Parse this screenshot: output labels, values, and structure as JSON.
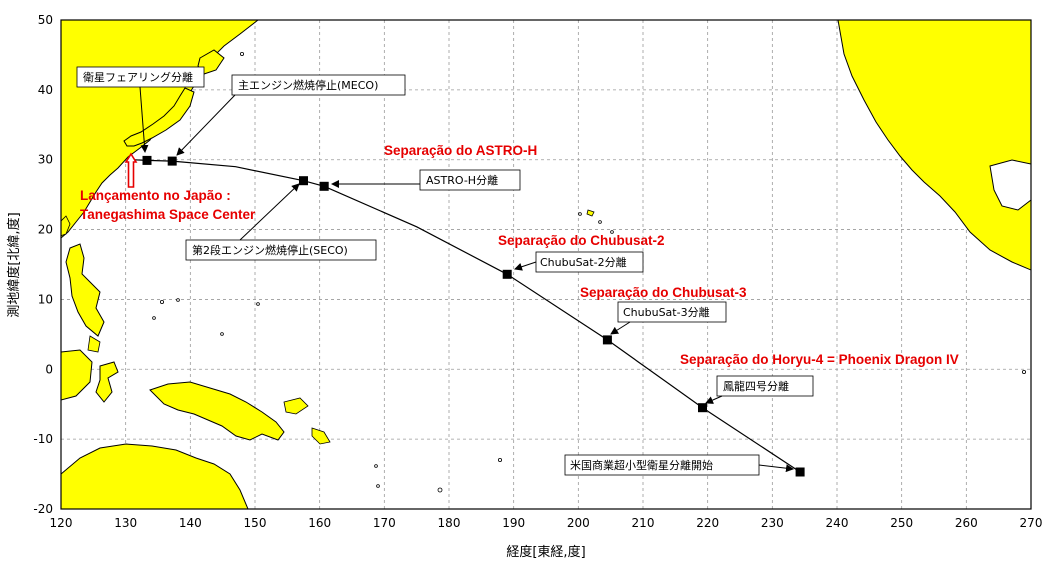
{
  "chart_data": {
    "type": "map",
    "xlabel": "経度[東経,度]",
    "ylabel": "測地緯度[北緯,度]",
    "xlim": [
      120,
      270
    ],
    "ylim": [
      -20,
      50
    ],
    "x_ticks": [
      120,
      130,
      140,
      150,
      160,
      170,
      180,
      190,
      200,
      210,
      220,
      230,
      240,
      250,
      260,
      270
    ],
    "y_ticks": [
      -20,
      -10,
      0,
      10,
      20,
      30,
      40,
      50
    ],
    "grid": true,
    "land_color": "#ffff00",
    "trajectory": [
      [
        130.9,
        30.0
      ],
      [
        133.3,
        29.9
      ],
      [
        137.2,
        29.8
      ],
      [
        147.0,
        29.0
      ],
      [
        157.5,
        27.0
      ],
      [
        160.7,
        26.2
      ],
      [
        175.0,
        20.4
      ],
      [
        189.0,
        13.6
      ],
      [
        204.5,
        4.2
      ],
      [
        219.2,
        -5.5
      ],
      [
        234.3,
        -14.7
      ]
    ],
    "events": [
      {
        "lon": 133.3,
        "lat": 29.9,
        "callout": "衛星フェアリング分離",
        "label": ""
      },
      {
        "lon": 137.2,
        "lat": 29.8,
        "callout": "主エンジン燃焼停止(MECO)",
        "label": ""
      },
      {
        "lon": 157.5,
        "lat": 27.0,
        "callout": "第2段エンジン燃焼停止(SECO)",
        "label": ""
      },
      {
        "lon": 160.7,
        "lat": 26.2,
        "callout": "ASTRO-H分離",
        "label": "Separação do ASTRO-H"
      },
      {
        "lon": 189.0,
        "lat": 13.6,
        "callout": "ChubuSat-2分離",
        "label": "Separação do Chubusat-2"
      },
      {
        "lon": 204.5,
        "lat": 4.2,
        "callout": "ChubuSat-3分離",
        "label": "Separação do Chubusat-3"
      },
      {
        "lon": 219.2,
        "lat": -5.5,
        "callout": "鳳龍四号分離",
        "label": "Separação do Horyu-4 = Phoenix Dragon IV"
      },
      {
        "lon": 234.3,
        "lat": -14.7,
        "callout": "米国商業超小型衛星分離開始",
        "label": ""
      }
    ],
    "launch_label": [
      "Lançamento no Japão :",
      "Tanegashima Space Center"
    ],
    "annotation_color": "#e60000"
  }
}
